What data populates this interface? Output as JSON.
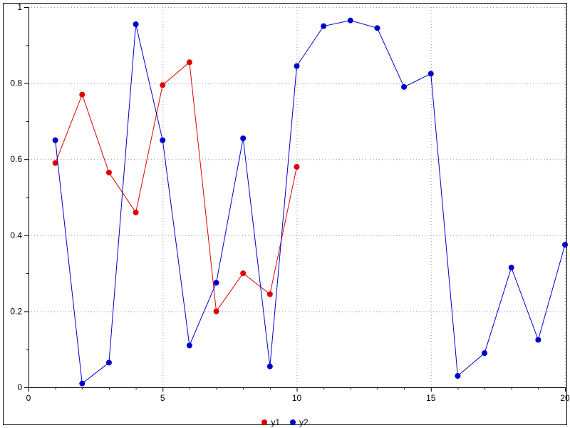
{
  "chart_data": {
    "type": "line",
    "title": "",
    "xlabel": "",
    "ylabel": "",
    "xlim": [
      0,
      20
    ],
    "ylim": [
      0,
      1
    ],
    "xticks": [
      0,
      5,
      10,
      15,
      20
    ],
    "yticks": [
      0,
      0.2,
      0.4,
      0.6,
      0.8,
      1
    ],
    "x_minor_step": 1,
    "y_minor_step": 0.1,
    "grid": true,
    "grid_style": "dotted",
    "legend_position": "bottom-center",
    "axis_color": "#000000",
    "grid_color": "#999999",
    "frame": true,
    "marker": "filled-circle",
    "series": [
      {
        "name": "y1",
        "color": "#e00000",
        "x": [
          1,
          2,
          3,
          4,
          5,
          6,
          7,
          8,
          9,
          10
        ],
        "values": [
          0.59,
          0.77,
          0.565,
          0.46,
          0.795,
          0.855,
          0.2,
          0.3,
          0.245,
          0.58
        ]
      },
      {
        "name": "y2",
        "color": "#0000cc",
        "x": [
          1,
          2,
          3,
          4,
          5,
          6,
          7,
          8,
          9,
          10,
          11,
          12,
          13,
          14,
          15,
          16,
          17,
          18,
          19,
          20
        ],
        "values": [
          0.65,
          0.01,
          0.065,
          0.955,
          0.65,
          0.11,
          0.275,
          0.655,
          0.055,
          0.845,
          0.95,
          0.965,
          0.945,
          0.79,
          0.825,
          0.03,
          0.09,
          0.315,
          0.125,
          0.375
        ]
      }
    ]
  }
}
